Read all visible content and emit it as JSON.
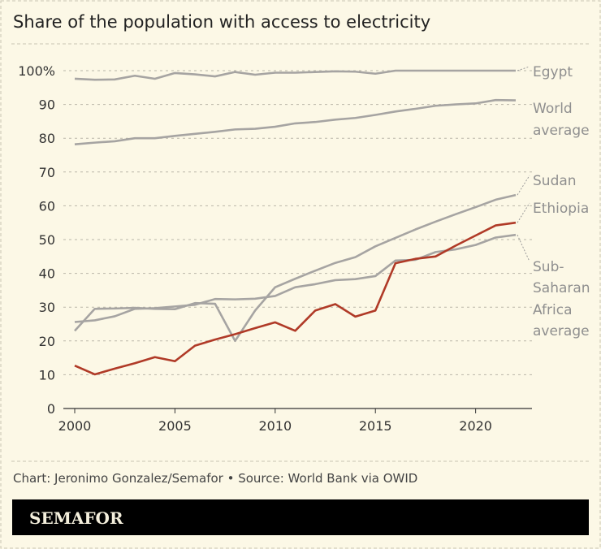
{
  "chart_data": {
    "type": "line",
    "title": "Share of the population with access to electricity",
    "xlabel": "",
    "ylabel": "",
    "xlim": [
      2000,
      2022
    ],
    "ylim": [
      0,
      100
    ],
    "x_ticks": [
      "2000",
      "2005",
      "2010",
      "2015",
      "2020"
    ],
    "y_ticks": [
      "0",
      "10",
      "20",
      "30",
      "40",
      "50",
      "60",
      "70",
      "80",
      "90",
      "100%"
    ],
    "grid": "horizontal dotted",
    "legend": "direct labels right",
    "x": [
      2000,
      2001,
      2002,
      2003,
      2004,
      2005,
      2006,
      2007,
      2008,
      2009,
      2010,
      2011,
      2012,
      2013,
      2014,
      2015,
      2016,
      2017,
      2018,
      2019,
      2020,
      2021,
      2022
    ],
    "series": [
      {
        "name": "Egypt",
        "label_lines": [
          "Egypt"
        ],
        "color": "#a6a4a2",
        "values": [
          97.6,
          97.3,
          97.4,
          98.5,
          97.6,
          99.3,
          98.9,
          98.3,
          99.6,
          98.8,
          99.4,
          99.4,
          99.6,
          99.8,
          99.7,
          99.1,
          100,
          100,
          100,
          100,
          100,
          100,
          100
        ]
      },
      {
        "name": "World average",
        "label_lines": [
          "World",
          "average"
        ],
        "color": "#a6a4a2",
        "values": [
          78.2,
          78.7,
          79.1,
          80.0,
          80.0,
          80.7,
          81.3,
          81.9,
          82.6,
          82.8,
          83.4,
          84.4,
          84.8,
          85.5,
          86.0,
          86.9,
          87.9,
          88.7,
          89.6,
          90.0,
          90.3,
          91.3,
          91.2
        ]
      },
      {
        "name": "Sudan",
        "label_lines": [
          "Sudan"
        ],
        "color": "#a6a4a2",
        "values": [
          23.0,
          29.5,
          29.6,
          29.8,
          29.5,
          29.4,
          31.2,
          31.0,
          20.0,
          29.0,
          35.9,
          38.4,
          40.8,
          43.1,
          44.8,
          48.0,
          50.5,
          53.0,
          55.3,
          57.5,
          59.6,
          61.8,
          63.2
        ]
      },
      {
        "name": "Ethiopia",
        "label_lines": [
          "Ethiopia"
        ],
        "color": "#b03a27",
        "values": [
          12.7,
          10.1,
          11.8,
          13.4,
          15.2,
          14.0,
          18.6,
          20.4,
          22.0,
          23.8,
          25.5,
          23.0,
          29.0,
          30.9,
          27.2,
          29.0,
          43.0,
          44.3,
          45.0,
          48.2,
          51.2,
          54.2,
          55.0
        ]
      },
      {
        "name": "Sub-Saharan Africa average",
        "label_lines": [
          "Sub-",
          "Saharan",
          "Africa",
          "average"
        ],
        "color": "#a6a4a2",
        "values": [
          25.6,
          26.1,
          27.3,
          29.5,
          29.7,
          30.2,
          30.7,
          32.4,
          32.3,
          32.5,
          33.3,
          35.9,
          36.8,
          38.0,
          38.3,
          39.2,
          43.8,
          44.0,
          46.3,
          47.1,
          48.4,
          50.6,
          51.4
        ]
      }
    ]
  },
  "footer": {
    "credit": "Chart: Jeronimo Gonzalez/Semafor • Source: World Bank via OWID",
    "logo": "SEMAFOR"
  }
}
